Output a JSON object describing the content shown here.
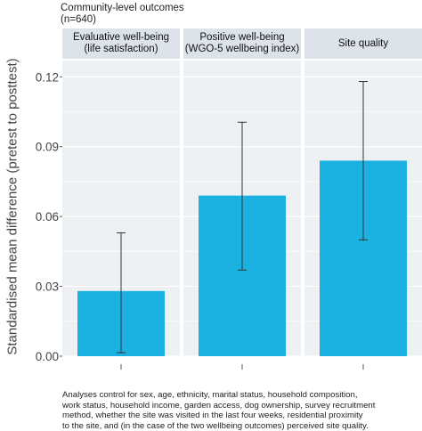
{
  "header": {
    "title": "Community-level outcomes",
    "sample": "(n=640)"
  },
  "panels": [
    {
      "line1": "Evaluative well-being",
      "line2": "(life satisfaction)"
    },
    {
      "line1": "Positive well-being",
      "line2": "(WGO-5 wellbeing index)"
    },
    {
      "line1": "Site quality",
      "line2": ""
    }
  ],
  "colors": {
    "bar": "#1ab0e0",
    "panel_bg": "#eef1f4",
    "strip_bg": "#dde3ea",
    "grid": "#ffffff",
    "error": "#333333"
  },
  "chart_data": {
    "type": "bar",
    "categories": [
      "Evaluative well-being (life satisfaction)",
      "Positive well-being (WGO-5 wellbeing index)",
      "Site quality"
    ],
    "values": [
      0.028,
      0.069,
      0.084
    ],
    "error_low": [
      0.0015,
      0.037,
      0.05
    ],
    "error_high": [
      0.053,
      0.1005,
      0.118
    ],
    "ylabel": "Standardised mean difference (pretest to posttest)",
    "ylim": [
      0,
      0.127
    ],
    "yticks": [
      "0.00",
      "0.03",
      "0.06",
      "0.09",
      "0.12"
    ],
    "ytick_values": [
      0,
      0.03,
      0.06,
      0.09,
      0.12
    ],
    "grid": true
  },
  "note": {
    "lines": [
      "Analyses control for sex, age, ethnicity, marital status, household composition,",
      "work status, household income, garden access, dog ownership, survey recruitment",
      "method, whether the site was visited in the last four weeks, residential proximity",
      "to the site, and (in the case of the two wellbeing outcomes) perceived site quality."
    ]
  }
}
